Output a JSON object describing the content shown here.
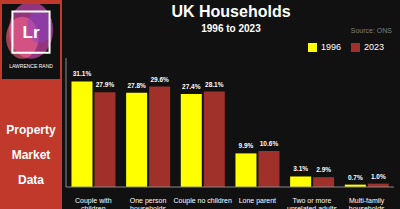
{
  "chart_data": {
    "type": "bar",
    "title": "UK Households",
    "subtitle": "1996 to 2023",
    "categories": [
      "Couple with\nchildren",
      "One person\nhouseholds",
      "Couple no children",
      "Lone parent",
      "Two or more\nunrelated adults",
      "Multi-family\nhouseholds"
    ],
    "series": [
      {
        "name": "1996",
        "color": "#ffff00",
        "values": [
          31.1,
          27.8,
          27.4,
          9.9,
          3.1,
          0.7
        ],
        "value_labels": [
          "31.1%",
          "27.8%",
          "27.4%",
          "9.9%",
          "3.1%",
          "0.7%"
        ]
      },
      {
        "name": "2023",
        "color": "#a0302a",
        "values": [
          27.9,
          29.6,
          28.1,
          10.6,
          2.9,
          1.0
        ],
        "value_labels": [
          "27.9%",
          "29.6%",
          "28.1%",
          "10.6%",
          "2.9%",
          "1.0%"
        ]
      }
    ],
    "ylim": [
      0,
      38
    ],
    "grid": false,
    "legend": "upper right",
    "data_labels": true,
    "tick_labels": "x",
    "annotations": [
      "Lr",
      "LAWRENCE RAND",
      "Property",
      "Market",
      "Data",
      "Source: ONS"
    ]
  }
}
